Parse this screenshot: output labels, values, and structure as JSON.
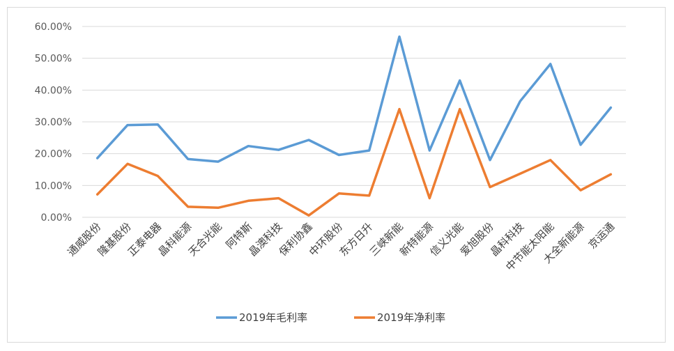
{
  "chart_data": {
    "type": "line",
    "title": "",
    "xlabel": "",
    "ylabel": "",
    "ylim": [
      0,
      0.6
    ],
    "yticks": [
      "0.00%",
      "10.00%",
      "20.00%",
      "30.00%",
      "40.00%",
      "50.00%",
      "60.00%"
    ],
    "grid": true,
    "legend_position": "bottom",
    "categories": [
      "通威股份",
      "隆基股份",
      "正泰电器",
      "晶科能源",
      "天合光能",
      "阿特斯",
      "晶澳科技",
      "保利协鑫",
      "中环股份",
      "东方日升",
      "三峡新能",
      "新特能源",
      "信义光能",
      "爱旭股份",
      "晶科科技",
      "中节能太阳能",
      "大全新能源",
      "京运通"
    ],
    "series": [
      {
        "name": "2019年毛利率",
        "color": "#5b9bd5",
        "values": [
          0.186,
          0.29,
          0.292,
          0.183,
          0.175,
          0.224,
          0.212,
          0.243,
          0.196,
          0.21,
          0.568,
          0.21,
          0.43,
          0.18,
          0.365,
          0.482,
          0.228,
          0.345
        ]
      },
      {
        "name": "2019年净利率",
        "color": "#ed7d31",
        "values": [
          0.072,
          0.168,
          0.13,
          0.033,
          0.03,
          0.052,
          0.06,
          0.006,
          0.075,
          0.068,
          0.34,
          0.06,
          0.34,
          0.095,
          0.137,
          0.18,
          0.085,
          0.135
        ]
      }
    ]
  }
}
